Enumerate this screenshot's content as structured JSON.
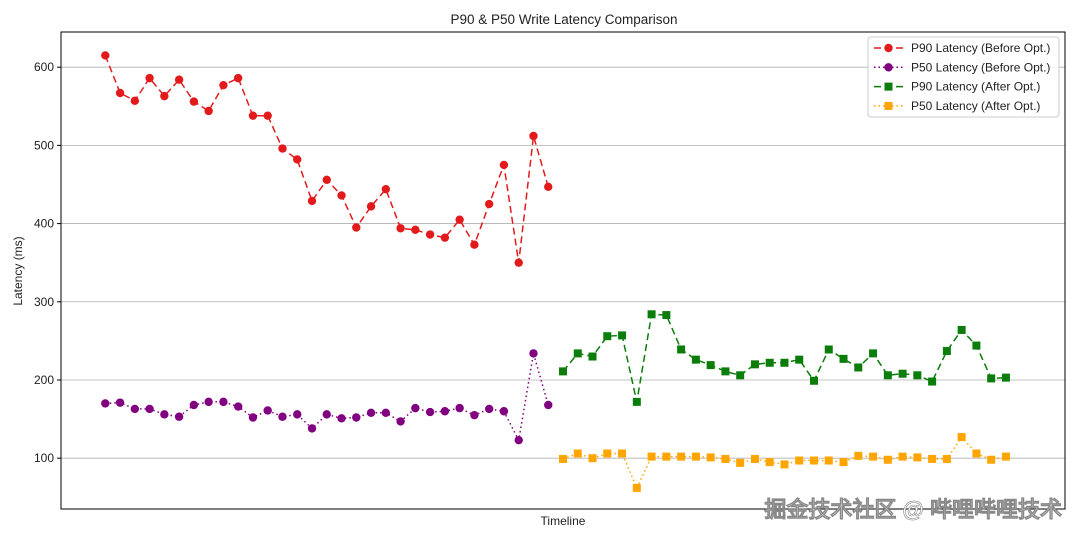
{
  "chart_data": {
    "type": "line",
    "title": "P90 & P50 Write Latency Comparison",
    "xlabel": "Timeline",
    "ylabel": "Latency (ms)",
    "ylim": [
      35,
      645
    ],
    "xlim": [
      -3,
      65
    ],
    "yticks": [
      100,
      200,
      300,
      400,
      500,
      600
    ],
    "grid": "y",
    "legend_position": "top-right",
    "series": [
      {
        "name": "P90 Latency (Before Opt.)",
        "color": "#e31a1c",
        "linestyle": "dashed",
        "marker": "circle",
        "x": [
          0,
          1,
          2,
          3,
          4,
          5,
          6,
          7,
          8,
          9,
          10,
          11,
          12,
          13,
          14,
          15,
          16,
          17,
          18,
          19,
          20,
          21,
          22,
          23,
          24,
          25,
          26,
          27,
          28,
          29,
          30
        ],
        "values": [
          615,
          567,
          557,
          586,
          563,
          584,
          556,
          544,
          577,
          586,
          538,
          538,
          496,
          482,
          429,
          456,
          436,
          395,
          422,
          444,
          394,
          392,
          386,
          382,
          405,
          373,
          425,
          475,
          350,
          512,
          447
        ]
      },
      {
        "name": "P50 Latency (Before Opt.)",
        "color": "#800080",
        "linestyle": "dotted",
        "marker": "circle",
        "x": [
          0,
          1,
          2,
          3,
          4,
          5,
          6,
          7,
          8,
          9,
          10,
          11,
          12,
          13,
          14,
          15,
          16,
          17,
          18,
          19,
          20,
          21,
          22,
          23,
          24,
          25,
          26,
          27,
          28,
          29,
          30
        ],
        "values": [
          170,
          171,
          163,
          163,
          156,
          153,
          168,
          172,
          172,
          166,
          152,
          161,
          153,
          156,
          138,
          156,
          151,
          152,
          158,
          158,
          147,
          164,
          159,
          160,
          164,
          155,
          163,
          160,
          123,
          234,
          168
        ]
      },
      {
        "name": "P90 Latency (After Opt.)",
        "color": "#0a7d0a",
        "linestyle": "dashed",
        "marker": "square",
        "x": [
          31,
          32,
          33,
          34,
          35,
          36,
          37,
          38,
          39,
          40,
          41,
          42,
          43,
          44,
          45,
          46,
          47,
          48,
          49,
          50,
          51,
          52,
          53,
          54,
          55,
          56,
          57,
          58,
          59,
          60,
          61
        ],
        "values": [
          211,
          234,
          230,
          256,
          257,
          172,
          284,
          283,
          239,
          226,
          219,
          211,
          206,
          220,
          222,
          222,
          226,
          199,
          239,
          227,
          216,
          234,
          206,
          208,
          206,
          198,
          237,
          264,
          244,
          202,
          203
        ]
      },
      {
        "name": "P50 Latency (After Opt.)",
        "color": "#ffa500",
        "linestyle": "dotted",
        "marker": "square",
        "x": [
          31,
          32,
          33,
          34,
          35,
          36,
          37,
          38,
          39,
          40,
          41,
          42,
          43,
          44,
          45,
          46,
          47,
          48,
          49,
          50,
          51,
          52,
          53,
          54,
          55,
          56,
          57,
          58,
          59,
          60,
          61
        ],
        "values": [
          99,
          106,
          100,
          106,
          106,
          62,
          102,
          102,
          102,
          102,
          101,
          99,
          94,
          99,
          95,
          92,
          97,
          97,
          97,
          95,
          103,
          102,
          98,
          102,
          101,
          99,
          99,
          127,
          106,
          98,
          102
        ]
      }
    ]
  },
  "watermark": "掘金技术社区 @ 哔哩哔哩技术"
}
